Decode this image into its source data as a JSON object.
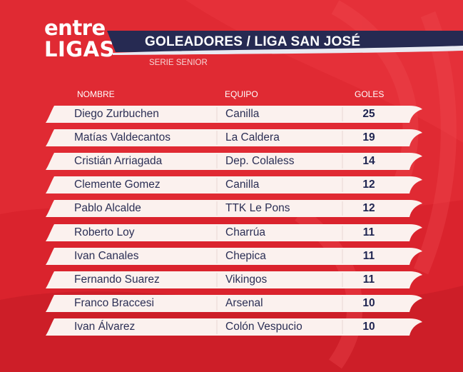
{
  "logo": {
    "line1": "entre",
    "line2": "LIGAS"
  },
  "title": "GOLEADORES / LIGA SAN JOSÉ",
  "subtitle": "SERIE SENIOR",
  "headers": {
    "name": "NOMBRE",
    "team": "EQUIPO",
    "goals": "GOLES"
  },
  "rows": [
    {
      "name": "Diego Zurbuchen",
      "team": "Canilla",
      "goals": "25"
    },
    {
      "name": "Matías Valdecantos",
      "team": "La Caldera",
      "goals": "19"
    },
    {
      "name": "Cristián Arriagada",
      "team": "Dep. Colaless",
      "goals": "14"
    },
    {
      "name": "Clemente Gomez",
      "team": "Canilla",
      "goals": "12"
    },
    {
      "name": "Pablo Alcalde",
      "team": "TTK Le Pons",
      "goals": "12"
    },
    {
      "name": "Roberto Loy",
      "team": "Charrúa",
      "goals": "11"
    },
    {
      "name": "Ivan Canales",
      "team": "Chepica",
      "goals": "11"
    },
    {
      "name": "Fernando Suarez",
      "team": "Vikingos",
      "goals": "11"
    },
    {
      "name": "Franco Braccesi",
      "team": "Arsenal",
      "goals": "10"
    },
    {
      "name": "Ivan Álvarez",
      "team": "Colón Vespucio",
      "goals": "10"
    }
  ],
  "colors": {
    "background": "#e02a33",
    "title_bar": "#262a52",
    "title_stripe": "#e9eaf2",
    "row_fill": "#fbf1ee",
    "text": "#2b2f55"
  }
}
